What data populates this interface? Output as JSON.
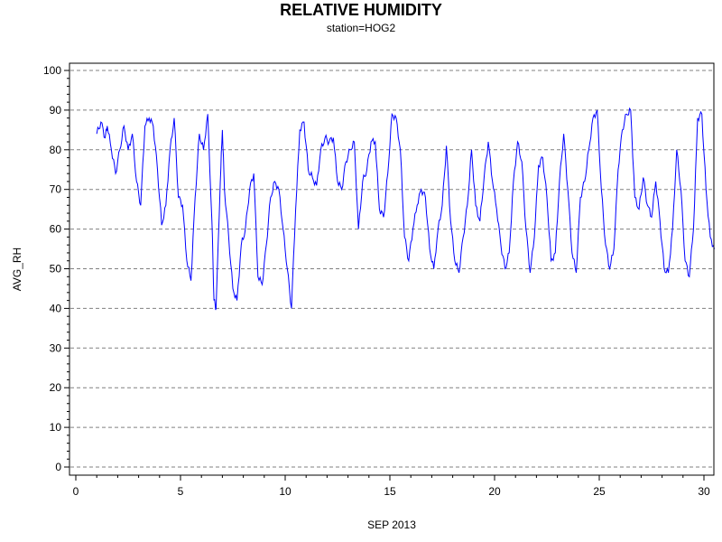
{
  "chart_data": {
    "type": "line",
    "title": "RELATIVE HUMIDITY",
    "subtitle": "station=HOG2",
    "xlabel": "SEP 2013",
    "ylabel": "AVG_RH",
    "xlim": [
      0,
      30
    ],
    "ylim": [
      0,
      100
    ],
    "x_ticks": [
      0,
      5,
      10,
      15,
      20,
      25,
      30
    ],
    "y_ticks": [
      0,
      10,
      20,
      30,
      40,
      50,
      60,
      70,
      80,
      90,
      100
    ],
    "grid": "horizontal-dashed",
    "line_color": "#0000ff",
    "series": [
      {
        "points": [
          [
            1.0,
            84
          ],
          [
            1.2,
            87
          ],
          [
            1.4,
            83
          ],
          [
            1.5,
            86
          ],
          [
            1.7,
            80
          ],
          [
            1.9,
            74
          ],
          [
            2.1,
            80
          ],
          [
            2.3,
            86
          ],
          [
            2.5,
            80
          ],
          [
            2.7,
            84
          ],
          [
            2.9,
            72
          ],
          [
            3.1,
            66
          ],
          [
            3.3,
            86
          ],
          [
            3.5,
            88
          ],
          [
            3.7,
            86
          ],
          [
            3.9,
            75
          ],
          [
            4.1,
            61
          ],
          [
            4.3,
            66
          ],
          [
            4.5,
            80
          ],
          [
            4.7,
            88
          ],
          [
            4.9,
            68
          ],
          [
            5.1,
            66
          ],
          [
            5.3,
            52
          ],
          [
            5.5,
            47
          ],
          [
            5.7,
            68
          ],
          [
            5.9,
            84
          ],
          [
            6.1,
            80
          ],
          [
            6.3,
            89
          ],
          [
            6.5,
            62
          ],
          [
            6.6,
            42
          ],
          [
            6.7,
            40
          ],
          [
            6.9,
            72
          ],
          [
            7.0,
            85
          ],
          [
            7.1,
            70
          ],
          [
            7.3,
            58
          ],
          [
            7.5,
            45
          ],
          [
            7.7,
            42
          ],
          [
            7.9,
            56
          ],
          [
            8.1,
            60
          ],
          [
            8.3,
            70
          ],
          [
            8.5,
            74
          ],
          [
            8.7,
            48
          ],
          [
            8.9,
            46
          ],
          [
            9.1,
            56
          ],
          [
            9.3,
            68
          ],
          [
            9.5,
            72
          ],
          [
            9.7,
            70
          ],
          [
            9.9,
            60
          ],
          [
            10.1,
            50
          ],
          [
            10.3,
            40
          ],
          [
            10.5,
            65
          ],
          [
            10.7,
            85
          ],
          [
            10.9,
            87
          ],
          [
            11.1,
            75
          ],
          [
            11.3,
            73
          ],
          [
            11.5,
            71
          ],
          [
            11.7,
            80
          ],
          [
            11.9,
            83
          ],
          [
            12.1,
            82
          ],
          [
            12.3,
            83
          ],
          [
            12.5,
            72
          ],
          [
            12.7,
            70
          ],
          [
            12.9,
            77
          ],
          [
            13.1,
            80
          ],
          [
            13.3,
            82
          ],
          [
            13.5,
            60
          ],
          [
            13.7,
            72
          ],
          [
            13.9,
            75
          ],
          [
            14.1,
            82
          ],
          [
            14.3,
            82
          ],
          [
            14.5,
            65
          ],
          [
            14.7,
            63
          ],
          [
            14.9,
            74
          ],
          [
            15.1,
            89
          ],
          [
            15.3,
            88
          ],
          [
            15.5,
            80
          ],
          [
            15.7,
            58
          ],
          [
            15.9,
            52
          ],
          [
            16.1,
            60
          ],
          [
            16.3,
            66
          ],
          [
            16.5,
            70
          ],
          [
            16.7,
            68
          ],
          [
            16.9,
            55
          ],
          [
            17.1,
            50
          ],
          [
            17.3,
            60
          ],
          [
            17.5,
            66
          ],
          [
            17.7,
            81
          ],
          [
            17.9,
            62
          ],
          [
            18.1,
            52
          ],
          [
            18.3,
            49
          ],
          [
            18.5,
            58
          ],
          [
            18.7,
            66
          ],
          [
            18.9,
            80
          ],
          [
            19.1,
            66
          ],
          [
            19.3,
            62
          ],
          [
            19.5,
            73
          ],
          [
            19.7,
            82
          ],
          [
            19.9,
            72
          ],
          [
            20.1,
            65
          ],
          [
            20.3,
            56
          ],
          [
            20.5,
            50
          ],
          [
            20.7,
            54
          ],
          [
            20.9,
            72
          ],
          [
            21.1,
            82
          ],
          [
            21.3,
            77
          ],
          [
            21.5,
            60
          ],
          [
            21.7,
            49
          ],
          [
            21.9,
            58
          ],
          [
            22.1,
            76
          ],
          [
            22.3,
            78
          ],
          [
            22.5,
            68
          ],
          [
            22.7,
            52
          ],
          [
            22.9,
            54
          ],
          [
            23.1,
            72
          ],
          [
            23.3,
            84
          ],
          [
            23.5,
            70
          ],
          [
            23.7,
            54
          ],
          [
            23.9,
            49
          ],
          [
            24.1,
            68
          ],
          [
            24.3,
            72
          ],
          [
            24.5,
            80
          ],
          [
            24.7,
            88
          ],
          [
            24.9,
            90
          ],
          [
            25.1,
            70
          ],
          [
            25.3,
            56
          ],
          [
            25.5,
            50
          ],
          [
            25.7,
            55
          ],
          [
            25.9,
            75
          ],
          [
            26.1,
            85
          ],
          [
            26.3,
            89
          ],
          [
            26.5,
            90
          ],
          [
            26.7,
            68
          ],
          [
            26.9,
            65
          ],
          [
            27.1,
            73
          ],
          [
            27.3,
            66
          ],
          [
            27.5,
            63
          ],
          [
            27.7,
            72
          ],
          [
            27.9,
            62
          ],
          [
            28.1,
            50
          ],
          [
            28.3,
            49
          ],
          [
            28.5,
            60
          ],
          [
            28.7,
            80
          ],
          [
            28.9,
            70
          ],
          [
            29.1,
            52
          ],
          [
            29.3,
            48
          ],
          [
            29.5,
            60
          ],
          [
            29.7,
            88
          ],
          [
            29.9,
            89
          ],
          [
            30.1,
            70
          ],
          [
            30.3,
            58
          ],
          [
            30.5,
            55
          ]
        ]
      }
    ]
  }
}
